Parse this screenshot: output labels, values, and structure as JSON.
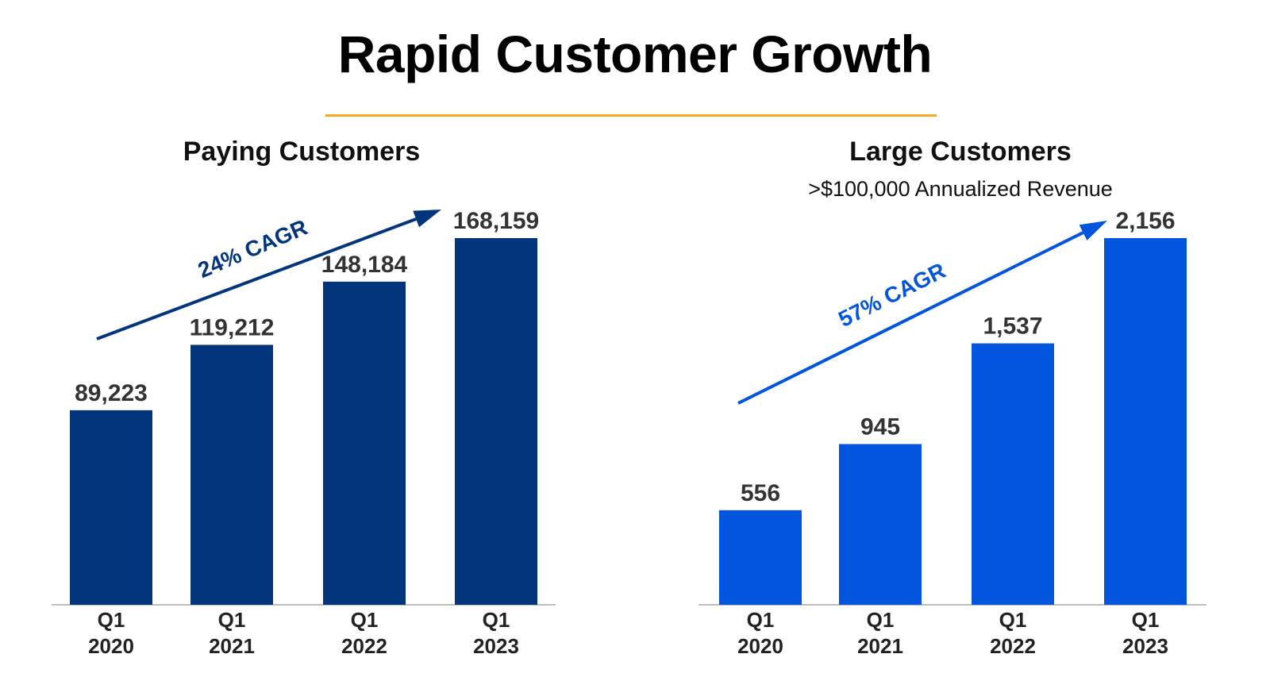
{
  "page": {
    "title": "Rapid Customer Growth",
    "accent_color": "#F5A623"
  },
  "chart_data": [
    {
      "type": "bar",
      "title": "Paying Customers",
      "subtitle": "",
      "categories": [
        [
          "Q1",
          "2020"
        ],
        [
          "Q1",
          "2021"
        ],
        [
          "Q1",
          "2022"
        ],
        [
          "Q1",
          "2023"
        ]
      ],
      "values": [
        89223,
        119212,
        148184,
        168159
      ],
      "value_labels": [
        "89,223",
        "119,212",
        "148,184",
        "168,159"
      ],
      "ylim": [
        0,
        190000
      ],
      "color": "#03357D",
      "trend_label": "24% CAGR",
      "grid": false
    },
    {
      "type": "bar",
      "title": "Large Customers",
      "subtitle": ">$100,000 Annualized Revenue",
      "categories": [
        [
          "Q1",
          "2020"
        ],
        [
          "Q1",
          "2021"
        ],
        [
          "Q1",
          "2022"
        ],
        [
          "Q1",
          "2023"
        ]
      ],
      "values": [
        556,
        945,
        1537,
        2156
      ],
      "value_labels": [
        "556",
        "945",
        "1,537",
        "2,156"
      ],
      "ylim": [
        0,
        2440
      ],
      "color": "#0455DD",
      "trend_label": "57% CAGR",
      "grid": false
    }
  ]
}
